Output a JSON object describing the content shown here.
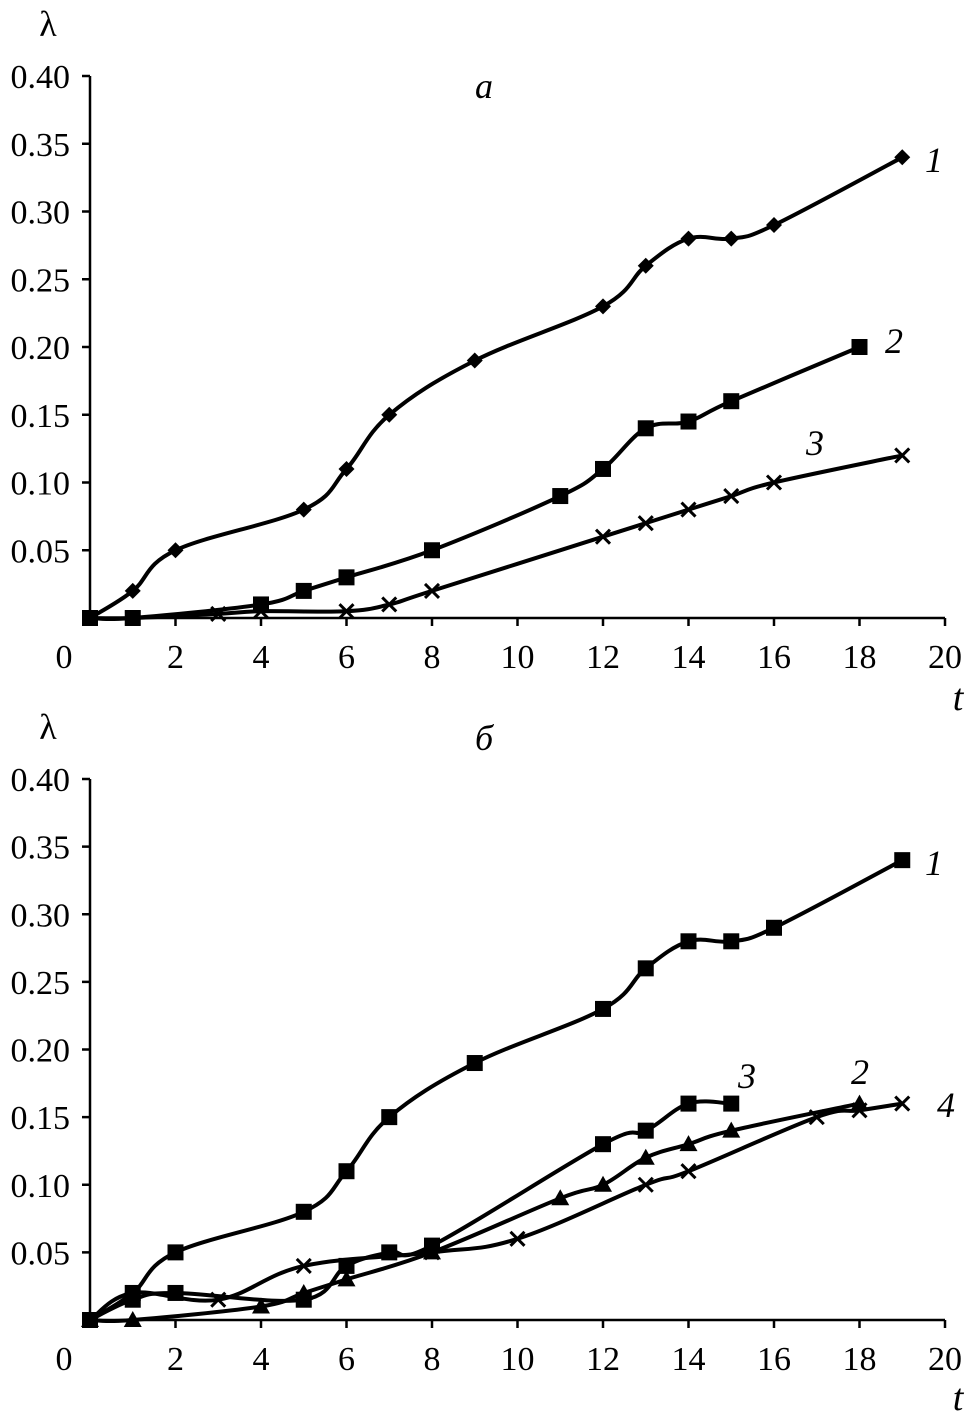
{
  "chart_data": [
    {
      "type": "line",
      "panel_label": "а",
      "xlabel": "t",
      "ylabel": "λ",
      "xlim": [
        0,
        20
      ],
      "ylim": [
        0,
        0.4
      ],
      "x_ticks": [
        "0",
        "2",
        "4",
        "6",
        "8",
        "10",
        "12",
        "14",
        "16",
        "18",
        "20"
      ],
      "y_ticks": [
        "0.05",
        "0.10",
        "0.15",
        "0.20",
        "0.25",
        "0.30",
        "0.35",
        "0.40"
      ],
      "grid": false,
      "series": [
        {
          "label": "1",
          "marker": "diamond",
          "x": [
            0,
            1,
            2,
            5,
            6,
            7,
            9,
            12,
            13,
            14,
            15,
            16,
            19
          ],
          "y": [
            0,
            0.02,
            0.05,
            0.08,
            0.11,
            0.15,
            0.19,
            0.23,
            0.26,
            0.28,
            0.28,
            0.29,
            0.34
          ]
        },
        {
          "label": "2",
          "marker": "square",
          "x": [
            0,
            1,
            4,
            5,
            6,
            8,
            11,
            12,
            13,
            14,
            15,
            18
          ],
          "y": [
            0,
            0,
            0.01,
            0.02,
            0.03,
            0.05,
            0.09,
            0.11,
            0.14,
            0.145,
            0.16,
            0.2
          ]
        },
        {
          "label": "3",
          "marker": "x",
          "x": [
            0,
            1,
            3,
            4,
            6,
            7,
            8,
            12,
            13,
            14,
            15,
            16,
            19
          ],
          "y": [
            0,
            0,
            0.003,
            0.005,
            0.005,
            0.01,
            0.02,
            0.06,
            0.07,
            0.08,
            0.09,
            0.1,
            0.12
          ]
        }
      ]
    },
    {
      "type": "line",
      "panel_label": "б",
      "xlabel": "t",
      "ylabel": "λ",
      "xlim": [
        0,
        20
      ],
      "ylim": [
        0,
        0.4
      ],
      "x_ticks": [
        "0",
        "2",
        "4",
        "6",
        "8",
        "10",
        "12",
        "14",
        "16",
        "18",
        "20"
      ],
      "y_ticks": [
        "0.05",
        "0.10",
        "0.15",
        "0.20",
        "0.25",
        "0.30",
        "0.35",
        "0.40"
      ],
      "grid": false,
      "series": [
        {
          "label": "1",
          "marker": "square",
          "x": [
            0,
            1,
            2,
            5,
            6,
            7,
            9,
            12,
            13,
            14,
            15,
            16,
            19
          ],
          "y": [
            0,
            0.02,
            0.05,
            0.08,
            0.11,
            0.15,
            0.19,
            0.23,
            0.26,
            0.28,
            0.28,
            0.29,
            0.34
          ]
        },
        {
          "label": "2",
          "marker": "triangle",
          "x": [
            0,
            1,
            4,
            5,
            6,
            8,
            11,
            12,
            13,
            14,
            15,
            18
          ],
          "y": [
            0,
            0,
            0.01,
            0.02,
            0.03,
            0.05,
            0.09,
            0.1,
            0.12,
            0.13,
            0.14,
            0.16
          ]
        },
        {
          "label": "3",
          "marker": "square",
          "x": [
            0,
            1,
            2,
            5,
            6,
            7,
            8,
            12,
            13,
            14,
            15
          ],
          "y": [
            0,
            0.015,
            0.02,
            0.015,
            0.04,
            0.05,
            0.055,
            0.13,
            0.14,
            0.16,
            0.16
          ]
        },
        {
          "label": "4",
          "marker": "x",
          "x": [
            0,
            1,
            3,
            5,
            8,
            10,
            13,
            14,
            17,
            18,
            19
          ],
          "y": [
            0,
            0.02,
            0.015,
            0.04,
            0.05,
            0.06,
            0.1,
            0.11,
            0.15,
            0.155,
            0.16
          ]
        }
      ]
    }
  ]
}
